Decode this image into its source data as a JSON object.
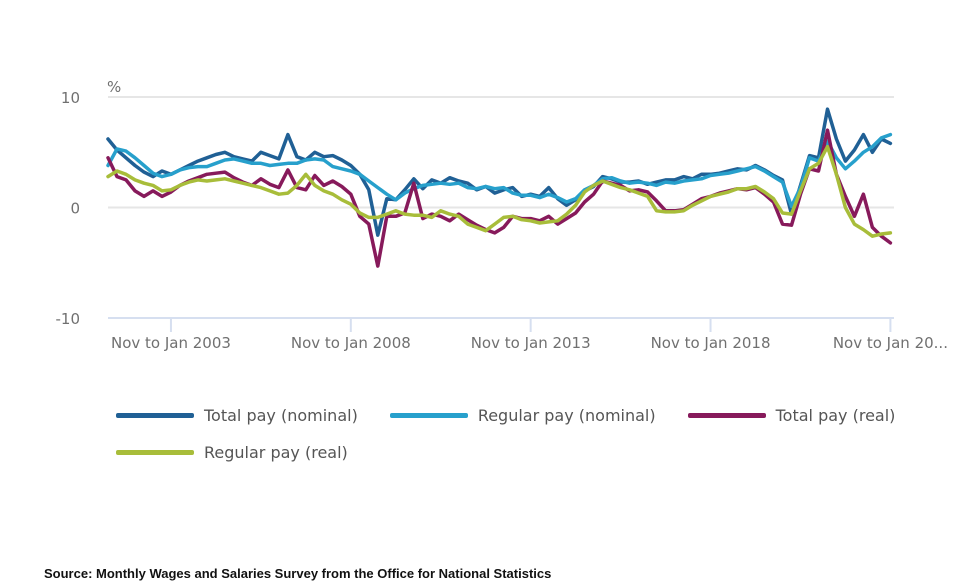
{
  "chart_data": {
    "type": "line",
    "title": "",
    "ylabel": "%",
    "xlabel": "",
    "ylim": [
      -10,
      10
    ],
    "xlim": [
      2001.25,
      2023.1
    ],
    "y_ticks": [
      10,
      0,
      -10
    ],
    "y_tick_labels": [
      "10",
      "0",
      "-10"
    ],
    "x_ticks": [
      2003.0,
      2008.0,
      2013.0,
      2018.0,
      2023.0
    ],
    "x_tick_labels": [
      "Nov to Jan 2003",
      "Nov to Jan 2008",
      "Nov to Jan 2013",
      "Nov to Jan 2018",
      "Nov to Jan 20..."
    ],
    "grid": true,
    "legend_position": "bottom",
    "x": [
      2001.25,
      2001.5,
      2001.75,
      2002.0,
      2002.25,
      2002.5,
      2002.75,
      2003.0,
      2003.25,
      2003.5,
      2003.75,
      2004.0,
      2004.25,
      2004.5,
      2004.75,
      2005.0,
      2005.25,
      2005.5,
      2005.75,
      2006.0,
      2006.25,
      2006.5,
      2006.75,
      2007.0,
      2007.25,
      2007.5,
      2007.75,
      2008.0,
      2008.25,
      2008.5,
      2008.75,
      2009.0,
      2009.25,
      2009.5,
      2009.75,
      2010.0,
      2010.25,
      2010.5,
      2010.75,
      2011.0,
      2011.25,
      2011.5,
      2011.75,
      2012.0,
      2012.25,
      2012.5,
      2012.75,
      2013.0,
      2013.25,
      2013.5,
      2013.75,
      2014.0,
      2014.25,
      2014.5,
      2014.75,
      2015.0,
      2015.25,
      2015.5,
      2015.75,
      2016.0,
      2016.25,
      2016.5,
      2016.75,
      2017.0,
      2017.25,
      2017.5,
      2017.75,
      2018.0,
      2018.25,
      2018.5,
      2018.75,
      2019.0,
      2019.25,
      2019.5,
      2019.75,
      2020.0,
      2020.25,
      2020.5,
      2020.75,
      2021.0,
      2021.25,
      2021.5,
      2021.75,
      2022.0,
      2022.25,
      2022.5,
      2022.75,
      2023.0
    ],
    "series": [
      {
        "name": "Total pay (nominal)",
        "color": "#206095",
        "values": [
          6.2,
          5.2,
          4.5,
          3.8,
          3.2,
          2.8,
          3.3,
          3.0,
          3.4,
          3.8,
          4.2,
          4.5,
          4.8,
          5.0,
          4.6,
          4.4,
          4.2,
          5.0,
          4.7,
          4.4,
          6.6,
          4.6,
          4.3,
          5.0,
          4.6,
          4.7,
          4.3,
          3.8,
          3.0,
          1.6,
          -2.5,
          0.8,
          0.7,
          1.6,
          2.6,
          1.7,
          2.5,
          2.2,
          2.7,
          2.4,
          2.2,
          1.6,
          1.9,
          1.3,
          1.6,
          1.8,
          1.0,
          1.2,
          1.0,
          1.8,
          0.8,
          0.2,
          0.7,
          1.5,
          1.9,
          2.8,
          2.6,
          2.3,
          2.3,
          2.4,
          2.1,
          2.3,
          2.5,
          2.5,
          2.8,
          2.6,
          3.0,
          3.0,
          3.1,
          3.3,
          3.5,
          3.4,
          3.8,
          3.4,
          2.9,
          2.5,
          -0.6,
          2.0,
          4.7,
          4.5,
          8.9,
          6.2,
          4.2,
          5.2,
          6.6,
          5.0,
          6.2,
          5.8
        ]
      },
      {
        "name": "Regular pay (nominal)",
        "color": "#27a0cc",
        "values": [
          3.8,
          5.3,
          5.1,
          4.5,
          3.8,
          3.1,
          2.8,
          3.0,
          3.4,
          3.6,
          3.7,
          3.7,
          4.0,
          4.3,
          4.4,
          4.2,
          4.0,
          4.0,
          3.8,
          3.9,
          4.0,
          4.0,
          4.3,
          4.4,
          4.3,
          3.7,
          3.5,
          3.3,
          3.0,
          2.4,
          1.8,
          1.2,
          0.7,
          1.3,
          1.7,
          2.0,
          2.1,
          2.2,
          2.1,
          2.2,
          1.8,
          1.7,
          1.9,
          1.7,
          1.8,
          1.3,
          1.1,
          1.1,
          0.9,
          1.2,
          0.9,
          0.5,
          0.8,
          1.6,
          2.0,
          2.6,
          2.7,
          2.4,
          2.2,
          2.3,
          2.2,
          2.0,
          2.3,
          2.2,
          2.4,
          2.5,
          2.6,
          2.9,
          3.0,
          3.1,
          3.3,
          3.5,
          3.7,
          3.3,
          2.8,
          2.3,
          0.1,
          1.8,
          4.5,
          4.2,
          6.0,
          4.5,
          3.5,
          4.2,
          5.0,
          5.5,
          6.3,
          6.6
        ]
      },
      {
        "name": "Total pay (real)",
        "color": "#871a5b",
        "values": [
          4.5,
          2.8,
          2.5,
          1.5,
          1.0,
          1.5,
          1.0,
          1.4,
          2.0,
          2.4,
          2.7,
          3.0,
          3.1,
          3.2,
          2.7,
          2.3,
          2.0,
          2.6,
          2.1,
          1.8,
          3.4,
          1.8,
          1.6,
          2.9,
          2.0,
          2.4,
          1.9,
          1.2,
          -0.8,
          -1.5,
          -5.3,
          -0.8,
          -0.8,
          -0.5,
          2.2,
          -1.0,
          -0.6,
          -0.8,
          -1.2,
          -0.6,
          -1.1,
          -1.6,
          -2.0,
          -2.3,
          -1.8,
          -0.8,
          -1.0,
          -1.0,
          -1.2,
          -0.8,
          -1.5,
          -1.0,
          -0.5,
          0.5,
          1.2,
          2.4,
          2.2,
          2.0,
          1.5,
          1.6,
          1.4,
          0.6,
          -0.3,
          -0.3,
          -0.2,
          0.3,
          0.8,
          1.0,
          1.3,
          1.5,
          1.7,
          1.6,
          1.8,
          1.2,
          0.5,
          -1.5,
          -1.6,
          1.2,
          3.5,
          3.3,
          7.0,
          3.0,
          1.0,
          -0.8,
          1.2,
          -1.8,
          -2.6,
          -3.2
        ]
      },
      {
        "name": "Regular pay (real)",
        "color": "#a8bd3a",
        "values": [
          2.8,
          3.3,
          3.0,
          2.5,
          2.2,
          2.0,
          1.5,
          1.6,
          2.0,
          2.3,
          2.5,
          2.4,
          2.5,
          2.6,
          2.4,
          2.2,
          2.0,
          1.8,
          1.5,
          1.2,
          1.3,
          2.0,
          3.0,
          2.0,
          1.5,
          1.2,
          0.7,
          0.3,
          -0.5,
          -0.9,
          -0.9,
          -0.6,
          -0.3,
          -0.6,
          -0.7,
          -0.7,
          -0.9,
          -0.3,
          -0.6,
          -0.8,
          -1.5,
          -1.8,
          -2.1,
          -1.5,
          -0.9,
          -0.8,
          -1.1,
          -1.2,
          -1.4,
          -1.3,
          -1.2,
          -0.6,
          0.2,
          1.4,
          2.0,
          2.4,
          2.1,
          1.8,
          1.6,
          1.3,
          1.0,
          -0.3,
          -0.4,
          -0.4,
          -0.3,
          0.2,
          0.6,
          1.0,
          1.2,
          1.4,
          1.7,
          1.7,
          1.9,
          1.4,
          0.8,
          -0.5,
          -0.6,
          1.5,
          3.5,
          4.0,
          5.5,
          3.0,
          0.0,
          -1.5,
          -2.0,
          -2.6,
          -2.4,
          -2.3
        ]
      }
    ]
  },
  "legend": {
    "items": [
      {
        "label": "Total pay (nominal)",
        "color": "#206095"
      },
      {
        "label": "Regular pay (nominal)",
        "color": "#27a0cc"
      },
      {
        "label": "Total pay (real)",
        "color": "#871a5b"
      },
      {
        "label": "Regular pay (real)",
        "color": "#a8bd3a"
      }
    ]
  },
  "source": "Source: Monthly Wages and Salaries Survey from the Office for National Statistics"
}
